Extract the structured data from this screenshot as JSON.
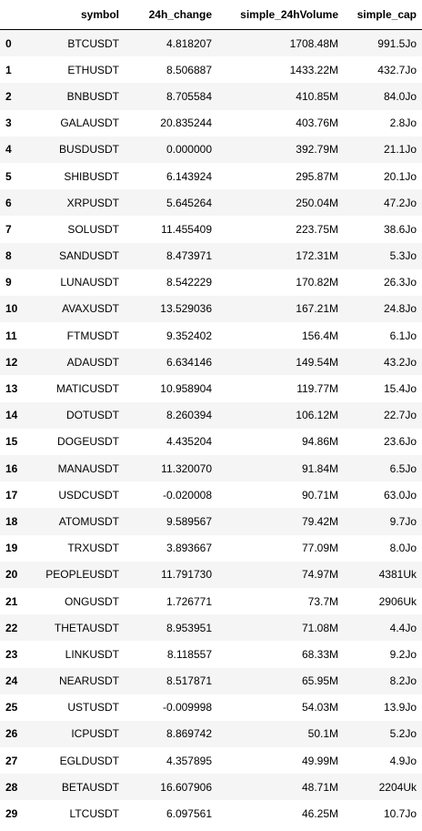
{
  "columns": [
    "",
    "symbol",
    "24h_change",
    "simple_24hVolume",
    "simple_cap"
  ],
  "rows": [
    {
      "index": "0",
      "symbol": "BTCUSDT",
      "change": "4.818207",
      "volume": "1708.48M",
      "cap": "991.5Jo"
    },
    {
      "index": "1",
      "symbol": "ETHUSDT",
      "change": "8.506887",
      "volume": "1433.22M",
      "cap": "432.7Jo"
    },
    {
      "index": "2",
      "symbol": "BNBUSDT",
      "change": "8.705584",
      "volume": "410.85M",
      "cap": "84.0Jo"
    },
    {
      "index": "3",
      "symbol": "GALAUSDT",
      "change": "20.835244",
      "volume": "403.76M",
      "cap": "2.8Jo"
    },
    {
      "index": "4",
      "symbol": "BUSDUSDT",
      "change": "0.000000",
      "volume": "392.79M",
      "cap": "21.1Jo"
    },
    {
      "index": "5",
      "symbol": "SHIBUSDT",
      "change": "6.143924",
      "volume": "295.87M",
      "cap": "20.1Jo"
    },
    {
      "index": "6",
      "symbol": "XRPUSDT",
      "change": "5.645264",
      "volume": "250.04M",
      "cap": "47.2Jo"
    },
    {
      "index": "7",
      "symbol": "SOLUSDT",
      "change": "11.455409",
      "volume": "223.75M",
      "cap": "38.6Jo"
    },
    {
      "index": "8",
      "symbol": "SANDUSDT",
      "change": "8.473971",
      "volume": "172.31M",
      "cap": "5.3Jo"
    },
    {
      "index": "9",
      "symbol": "LUNAUSDT",
      "change": "8.542229",
      "volume": "170.82M",
      "cap": "26.3Jo"
    },
    {
      "index": "10",
      "symbol": "AVAXUSDT",
      "change": "13.529036",
      "volume": "167.21M",
      "cap": "24.8Jo"
    },
    {
      "index": "11",
      "symbol": "FTMUSDT",
      "change": "9.352402",
      "volume": "156.4M",
      "cap": "6.1Jo"
    },
    {
      "index": "12",
      "symbol": "ADAUSDT",
      "change": "6.634146",
      "volume": "149.54M",
      "cap": "43.2Jo"
    },
    {
      "index": "13",
      "symbol": "MATICUSDT",
      "change": "10.958904",
      "volume": "119.77M",
      "cap": "15.4Jo"
    },
    {
      "index": "14",
      "symbol": "DOTUSDT",
      "change": "8.260394",
      "volume": "106.12M",
      "cap": "22.7Jo"
    },
    {
      "index": "15",
      "symbol": "DOGEUSDT",
      "change": "4.435204",
      "volume": "94.86M",
      "cap": "23.6Jo"
    },
    {
      "index": "16",
      "symbol": "MANAUSDT",
      "change": "11.320070",
      "volume": "91.84M",
      "cap": "6.5Jo"
    },
    {
      "index": "17",
      "symbol": "USDCUSDT",
      "change": "-0.020008",
      "volume": "90.71M",
      "cap": "63.0Jo"
    },
    {
      "index": "18",
      "symbol": "ATOMUSDT",
      "change": "9.589567",
      "volume": "79.42M",
      "cap": "9.7Jo"
    },
    {
      "index": "19",
      "symbol": "TRXUSDT",
      "change": "3.893667",
      "volume": "77.09M",
      "cap": "8.0Jo"
    },
    {
      "index": "20",
      "symbol": "PEOPLEUSDT",
      "change": "11.791730",
      "volume": "74.97M",
      "cap": "4381Uk"
    },
    {
      "index": "21",
      "symbol": "ONGUSDT",
      "change": "1.726771",
      "volume": "73.7M",
      "cap": "2906Uk"
    },
    {
      "index": "22",
      "symbol": "THETAUSDT",
      "change": "8.953951",
      "volume": "71.08M",
      "cap": "4.4Jo"
    },
    {
      "index": "23",
      "symbol": "LINKUSDT",
      "change": "8.118557",
      "volume": "68.33M",
      "cap": "9.2Jo"
    },
    {
      "index": "24",
      "symbol": "NEARUSDT",
      "change": "8.517871",
      "volume": "65.95M",
      "cap": "8.2Jo"
    },
    {
      "index": "25",
      "symbol": "USTUSDT",
      "change": "-0.009998",
      "volume": "54.03M",
      "cap": "13.9Jo"
    },
    {
      "index": "26",
      "symbol": "ICPUSDT",
      "change": "8.869742",
      "volume": "50.1M",
      "cap": "5.2Jo"
    },
    {
      "index": "27",
      "symbol": "EGLDUSDT",
      "change": "4.357895",
      "volume": "49.99M",
      "cap": "4.9Jo"
    },
    {
      "index": "28",
      "symbol": "BETAUSDT",
      "change": "16.607906",
      "volume": "48.71M",
      "cap": "2204Uk"
    },
    {
      "index": "29",
      "symbol": "LTCUSDT",
      "change": "6.097561",
      "volume": "46.25M",
      "cap": "10.7Jo"
    }
  ]
}
